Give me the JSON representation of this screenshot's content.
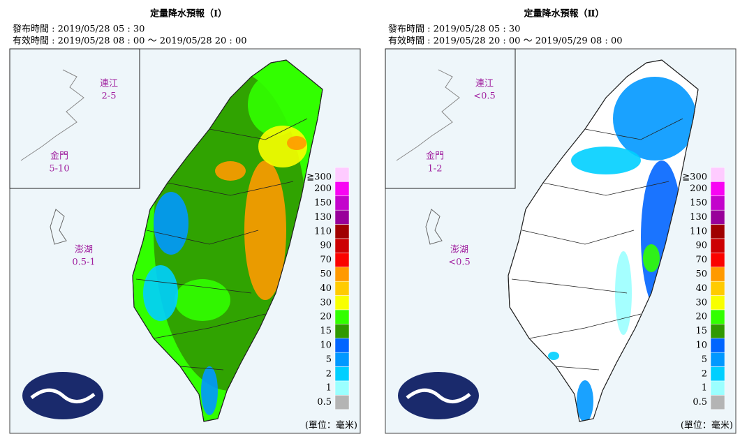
{
  "panels": [
    {
      "title": "定量降水預報（Ⅰ）",
      "issued": "發布時間 : 2019/05/28 05 : 30",
      "valid": "有效時間 : 2019/05/28 08 : 00 ～ 2019/05/28 20 : 00",
      "insets": [
        {
          "name": "連江",
          "value": "2-5"
        },
        {
          "name": "金門",
          "value": "5-10"
        },
        {
          "name": "澎湖",
          "value": "0.5-1"
        }
      ]
    },
    {
      "title": "定量降水預報（Ⅱ）",
      "issued": "發布時間 : 2019/05/28 05 : 30",
      "valid": "有效時間 : 2019/05/28 20 : 00 ～ 2019/05/29 08 : 00",
      "insets": [
        {
          "name": "連江",
          "value": "<0.5"
        },
        {
          "name": "金門",
          "value": "1-2"
        },
        {
          "name": "澎湖",
          "value": "<0.5"
        }
      ]
    }
  ],
  "legend": {
    "labels": [
      "≧300",
      "200",
      "150",
      "130",
      "110",
      "90",
      "70",
      "50",
      "40",
      "30",
      "20",
      "15",
      "10",
      "5",
      "2",
      "1",
      "0.5"
    ],
    "colors": [
      "#fecbff",
      "#f805f3",
      "#c304cc",
      "#98009a",
      "#a00000",
      "#cc0003",
      "#fa0300",
      "#ff9a00",
      "#ffcb00",
      "#f8ff00",
      "#32ff00",
      "#309901",
      "#0165ff",
      "#0198ff",
      "#00cfff",
      "#9bffff",
      "#b4b4b4"
    ]
  },
  "unit": "(單位：毫米)"
}
